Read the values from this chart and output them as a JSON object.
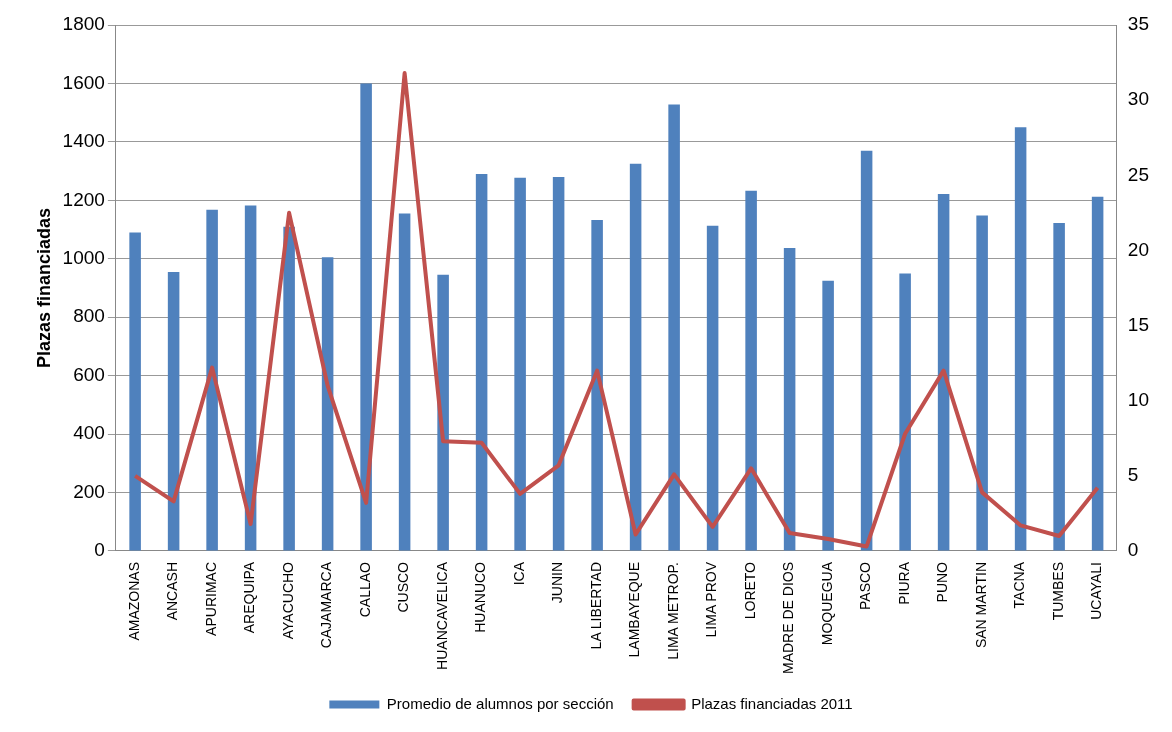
{
  "chart_data": {
    "type": "bar",
    "ylabel": "Plazas financiadas",
    "categories": [
      "AMAZONAS",
      "ANCASH",
      "APURIMAC",
      "AREQUIPA",
      "AYACUCHO",
      "CAJAMARCA",
      "CALLAO",
      "CUSCO",
      "HUANCAVELICA",
      "HUANUCO",
      "ICA",
      "JUNIN",
      "LA LIBERTAD",
      "LAMBAYEQUE",
      "LIMA METROP.",
      "LIMA PROV",
      "LORETO",
      "MADRE DE DIOS",
      "MOQUEGUA",
      "PASCO",
      "PIURA",
      "PUNO",
      "SAN MARTIN",
      "TACNA",
      "TUMBES",
      "UCAYALI"
    ],
    "series": [
      {
        "name": "Promedio de alumnos por sección",
        "color": "#4f81bd",
        "values": [
          1090,
          955,
          1168,
          1182,
          1110,
          1005,
          1600,
          1155,
          945,
          1290,
          1277,
          1280,
          1133,
          1325,
          1528,
          1113,
          1233,
          1037,
          925,
          1370,
          950,
          1222,
          1148,
          1450,
          1122,
          1212
        ]
      },
      {
        "name": "Plazas financiadas 2011",
        "type": "line",
        "axis": "y2",
        "color": "#c0504d",
        "values": [
          5,
          3.3,
          12.2,
          1.8,
          22.5,
          11,
          3.2,
          31.8,
          7.3,
          7.2,
          3.8,
          5.7,
          12,
          1.1,
          5.1,
          1.6,
          5.5,
          1.2,
          0.8,
          0.3,
          7.8,
          12,
          3.9,
          1.7,
          1.0,
          4.2
        ]
      }
    ],
    "ylim": [
      0,
      1800
    ],
    "yticks": [
      0,
      200,
      400,
      600,
      800,
      1000,
      1200,
      1400,
      1600,
      1800
    ],
    "y2lim": [
      0,
      35
    ],
    "y2ticks": [
      0,
      5,
      10,
      15,
      20,
      25,
      30,
      35
    ],
    "grid": "y",
    "legend": "bottom",
    "marker": "none"
  }
}
